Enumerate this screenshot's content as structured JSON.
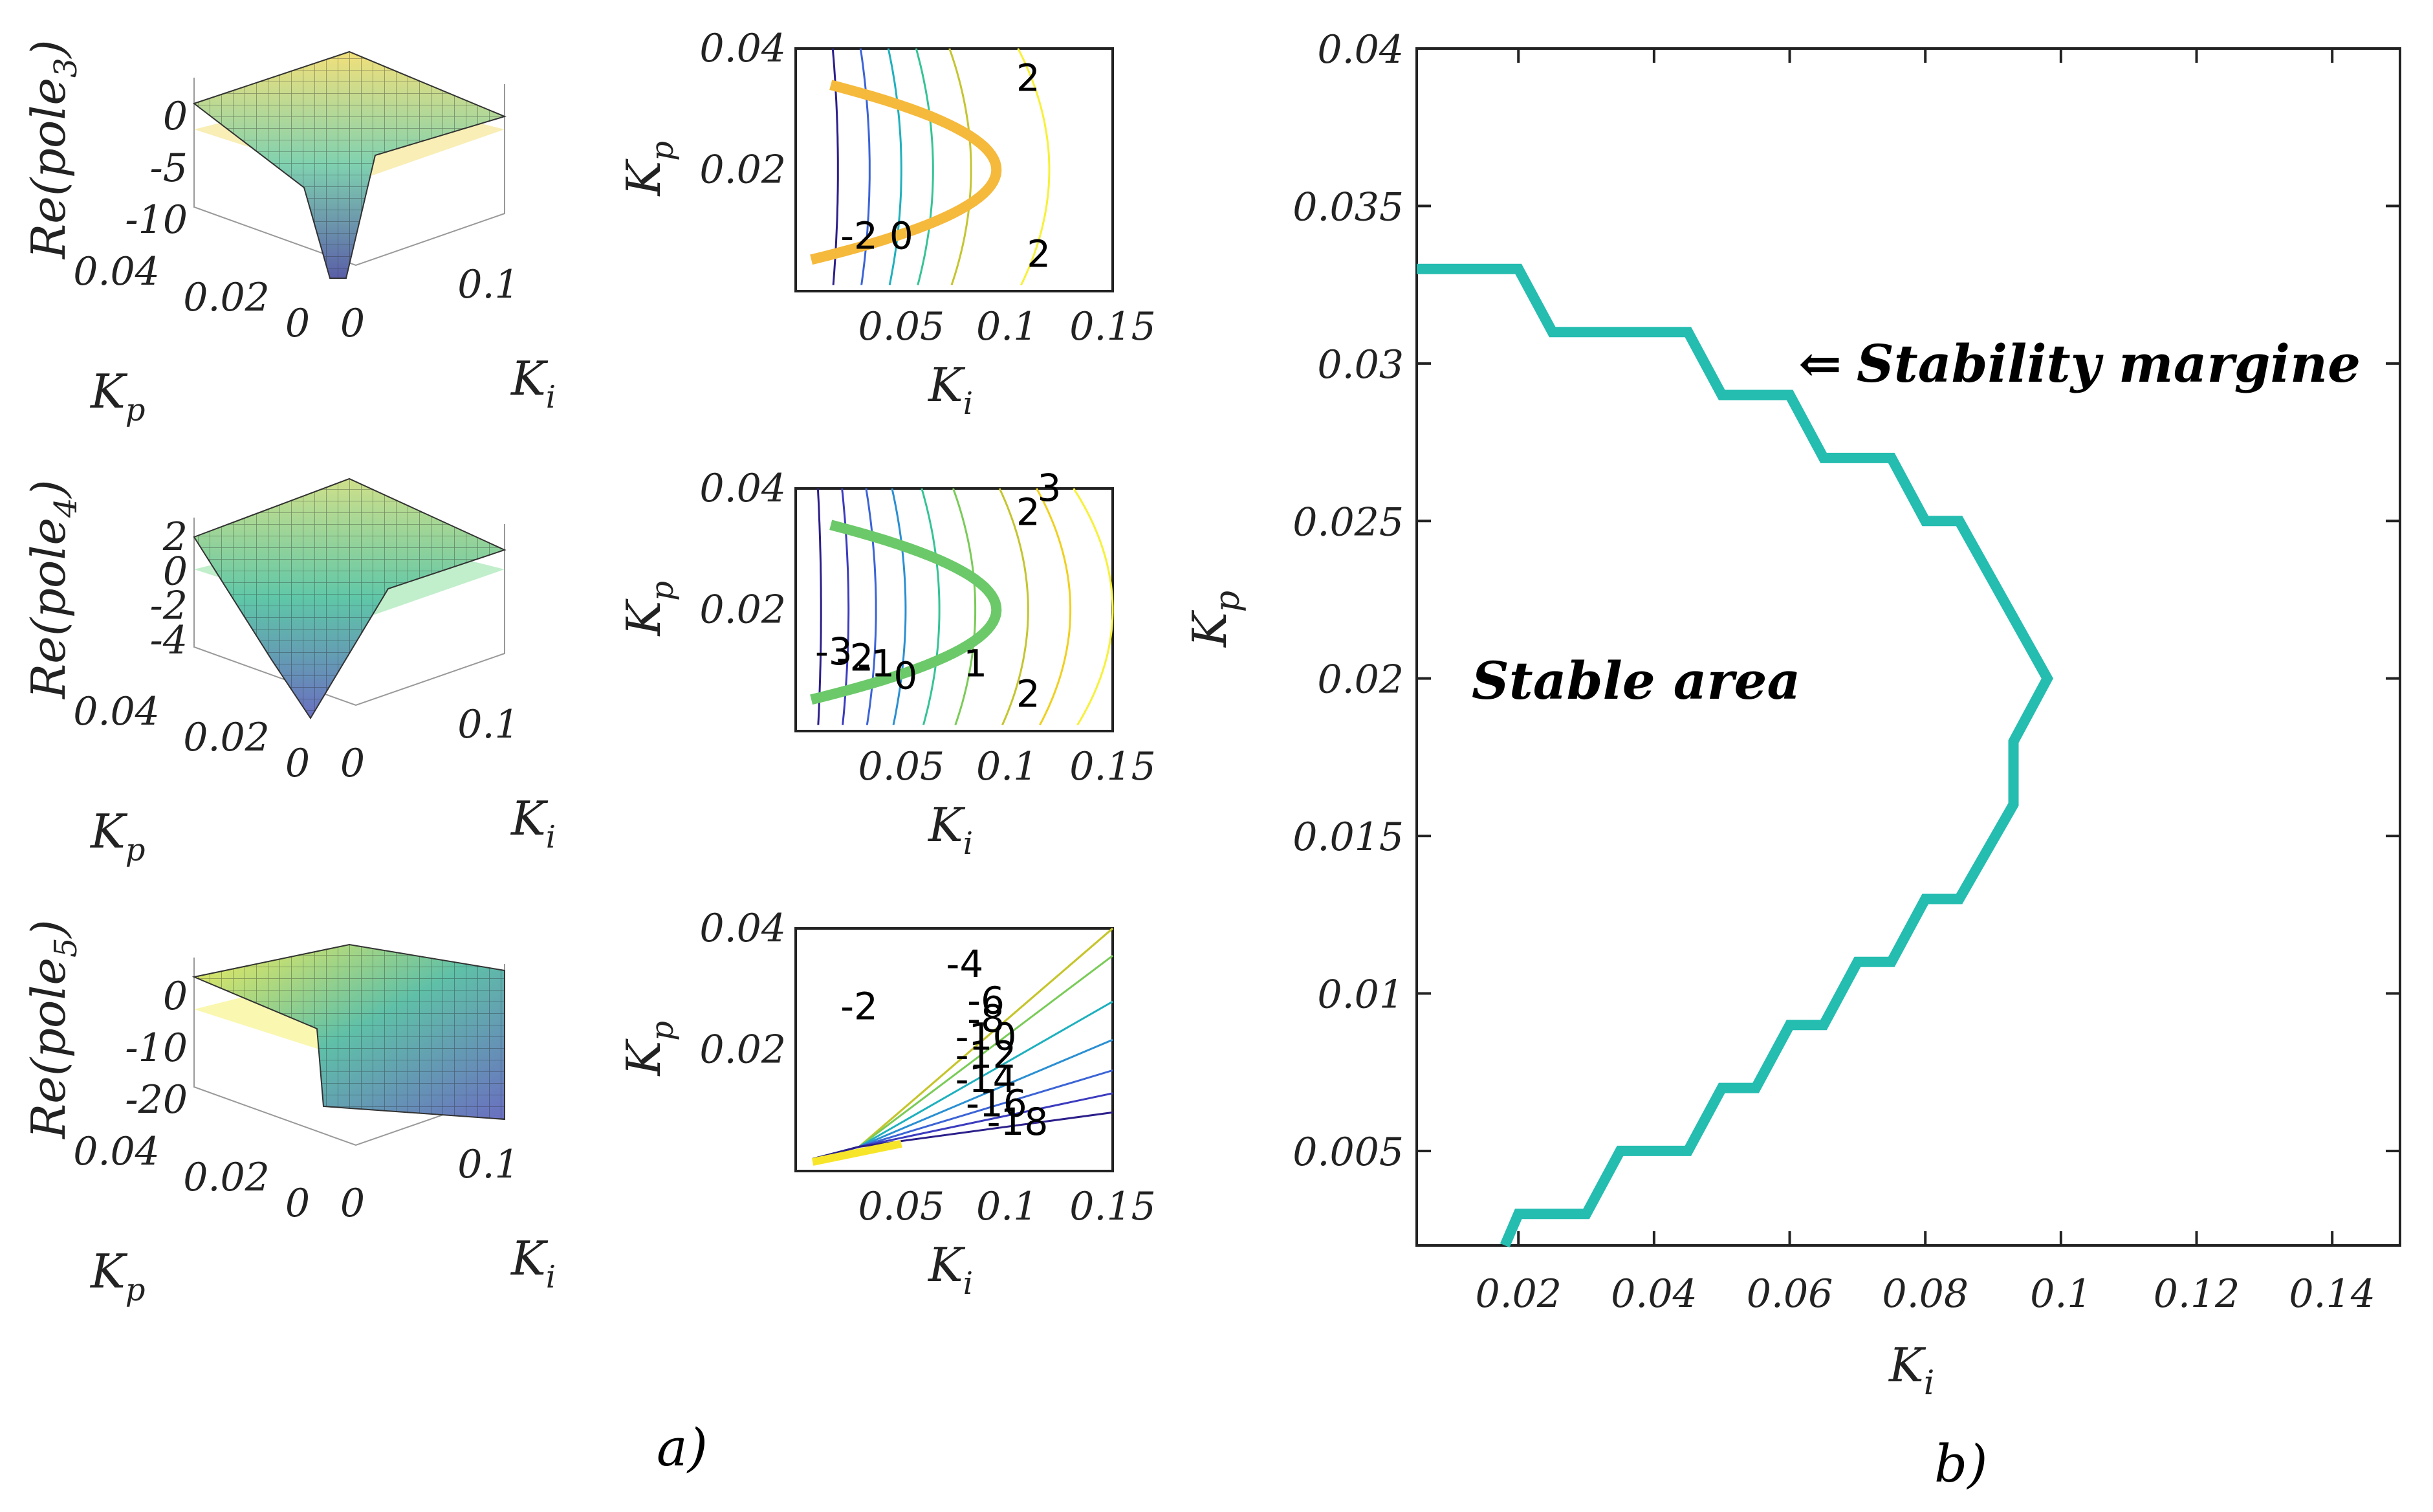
{
  "chart_data": [
    {
      "id": "pole3-surface",
      "type": "surface3d",
      "zlabel": "Re(pole",
      "zsub": "3",
      "zsuffix": ")",
      "xlabel": "K",
      "xsub": "i",
      "ylabel": "K",
      "ysub": "p",
      "zticks": [
        "0",
        "-5",
        "-10"
      ],
      "yticks": [
        "0.04",
        "0.02",
        "0"
      ],
      "xticks": [
        "0",
        "0.1"
      ],
      "colors": {
        "top": "#f2e07a",
        "mid": "#5fc7a8",
        "low": "#5a5fa8",
        "plane": "#f2e07a"
      }
    },
    {
      "id": "pole4-surface",
      "type": "surface3d",
      "zlabel": "Re(pole",
      "zsub": "4",
      "zsuffix": ")",
      "xlabel": "K",
      "xsub": "i",
      "ylabel": "K",
      "ysub": "p",
      "zticks": [
        "2",
        "0",
        "-2",
        "-4"
      ],
      "yticks": [
        "0.04",
        "0.02",
        "0"
      ],
      "xticks": [
        "0",
        "0.1"
      ],
      "colors": {
        "top": "#cfe08a",
        "mid": "#5fc7a8",
        "low": "#6a6fc0",
        "plane": "#8ee0a0"
      }
    },
    {
      "id": "pole5-surface",
      "type": "surface3d",
      "zlabel": "Re(pole",
      "zsub": "5",
      "zsuffix": ")",
      "xlabel": "K",
      "xsub": "i",
      "ylabel": "K",
      "ysub": "p",
      "zticks": [
        "0",
        "-10",
        "-20"
      ],
      "yticks": [
        "0.04",
        "0.02",
        "0"
      ],
      "xticks": [
        "0",
        "0.1"
      ],
      "colors": {
        "top": "#f5ee5a",
        "mid": "#4fb8a8",
        "low": "#6a6fc0",
        "plane": "#f5f070"
      }
    },
    {
      "id": "pole3-contour",
      "type": "contour",
      "xlabel": "K",
      "xsub": "i",
      "ylabel": "K",
      "ysub": "p",
      "xlim": [
        0,
        0.15
      ],
      "ylim": [
        0,
        0.04
      ],
      "xticks": [
        "0.05",
        "0.1",
        "0.15"
      ],
      "yticks": [
        "0.04",
        "0.02"
      ],
      "level_labels": [
        "2",
        "2",
        "0",
        "-2"
      ],
      "zero_color": "#f5b93c"
    },
    {
      "id": "pole4-contour",
      "type": "contour",
      "xlabel": "K",
      "xsub": "i",
      "ylabel": "K",
      "ysub": "p",
      "xlim": [
        0,
        0.15
      ],
      "ylim": [
        0,
        0.04
      ],
      "xticks": [
        "0.05",
        "0.1",
        "0.15"
      ],
      "yticks": [
        "0.04",
        "0.02"
      ],
      "level_labels": [
        "3",
        "2",
        "1",
        "0",
        "-1",
        "-2",
        "-3",
        "2"
      ],
      "zero_color": "#6cc96a"
    },
    {
      "id": "pole5-contour",
      "type": "contour",
      "xlabel": "K",
      "xsub": "i",
      "ylabel": "K",
      "ysub": "p",
      "xlim": [
        0,
        0.15
      ],
      "ylim": [
        0,
        0.04
      ],
      "xticks": [
        "0.05",
        "0.1",
        "0.15"
      ],
      "yticks": [
        "0.04",
        "0.02"
      ],
      "level_labels": [
        "-2",
        "-4",
        "-6",
        "-8",
        "-10",
        "-12",
        "-14",
        "-16",
        "-18"
      ]
    },
    {
      "id": "stability-margin",
      "type": "line",
      "title": "",
      "xlabel": "K",
      "xsub": "i",
      "ylabel": "K",
      "ysub": "p",
      "xlim": [
        0.005,
        0.15
      ],
      "ylim": [
        0.002,
        0.04
      ],
      "xticks": [
        0.02,
        0.04,
        0.06,
        0.08,
        0.1,
        0.12,
        0.14
      ],
      "xtick_labels": [
        "0.02",
        "0.04",
        "0.06",
        "0.08",
        "0.1",
        "0.12",
        "0.14"
      ],
      "yticks": [
        0.005,
        0.01,
        0.015,
        0.02,
        0.025,
        0.03,
        0.035,
        0.04
      ],
      "ytick_labels": [
        "0.005",
        "0.01",
        "0.015",
        "0.02",
        "0.025",
        "0.03",
        "0.035",
        "0.04"
      ],
      "grid": false,
      "series": [
        {
          "name": "Stability margine",
          "color": "#24bdb0",
          "x": [
            0.005,
            0.015,
            0.02,
            0.025,
            0.045,
            0.05,
            0.06,
            0.065,
            0.075,
            0.08,
            0.085,
            0.098,
            0.093,
            0.093,
            0.085,
            0.08,
            0.075,
            0.07,
            0.065,
            0.06,
            0.055,
            0.05,
            0.045,
            0.035,
            0.03,
            0.02,
            0.018
          ],
          "y": [
            0.033,
            0.033,
            0.033,
            0.031,
            0.031,
            0.029,
            0.029,
            0.027,
            0.027,
            0.025,
            0.025,
            0.02,
            0.018,
            0.016,
            0.013,
            0.013,
            0.011,
            0.011,
            0.009,
            0.009,
            0.007,
            0.007,
            0.005,
            0.005,
            0.003,
            0.003,
            0.002
          ]
        }
      ],
      "annotations": {
        "margin_label": "Stability margine",
        "arrow": "⇐",
        "area_label": "Stable area"
      }
    }
  ],
  "captions": {
    "a": "a)",
    "b": "b)"
  }
}
